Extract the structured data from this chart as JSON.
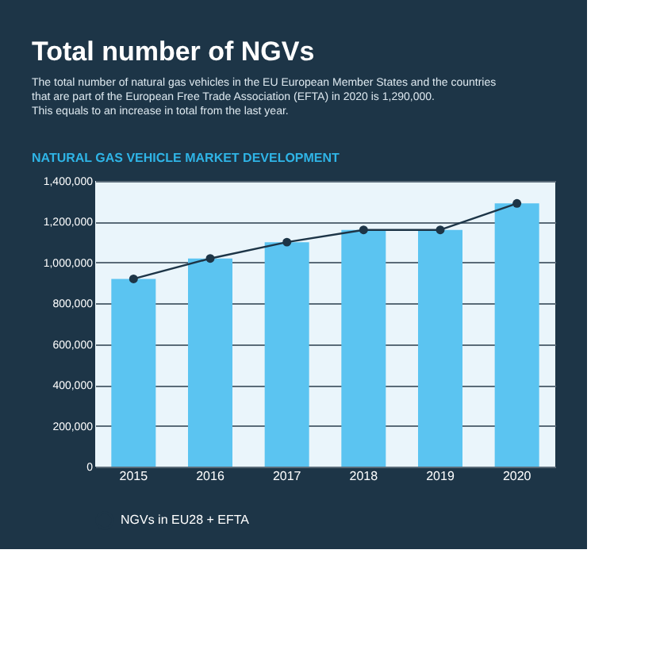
{
  "chart_data": {
    "type": "bar",
    "title": "Total number of NGVs",
    "subtitle": [
      "The total number of natural gas vehicles in the EU European Member States and the countries",
      "that are part of the European Free Trade Association (EFTA) in 2020 is 1,290,000.",
      "This equals to an increase in total from the last year."
    ],
    "annotations": [
      "NATURAL GAS VEHICLE MARKET DEVELOPMENT"
    ],
    "categories": [
      "2015",
      "2016",
      "2017",
      "2018",
      "2019",
      "2020"
    ],
    "series": [
      {
        "color": "#5bc4f1",
        "values": [
          920000,
          1020000,
          1100000,
          1160000,
          1160000,
          1290000
        ]
      },
      {
        "type": "line",
        "name": "NGVs in EU28 + EFTA",
        "color": "#1d3547",
        "values": [
          920000,
          1020000,
          1100000,
          1160000,
          1160000,
          1290000
        ]
      }
    ],
    "ylim": [
      0,
      1400000
    ],
    "yticks": [
      0,
      {
        "value": 200000,
        "label": "200,000"
      },
      {
        "value": 400000,
        "label": "400,000"
      },
      {
        "value": 600000,
        "label": "600,000"
      },
      {
        "value": 800000,
        "label": "800,000"
      },
      {
        "value": 1000000,
        "label": "1,000,000"
      },
      {
        "value": 1200000,
        "label": "1,200,000"
      },
      {
        "value": 1400000,
        "label": "1,400,000"
      }
    ],
    "grid": "y",
    "legend": "bottom left",
    "marker": "circle",
    "line_style": "solid"
  }
}
